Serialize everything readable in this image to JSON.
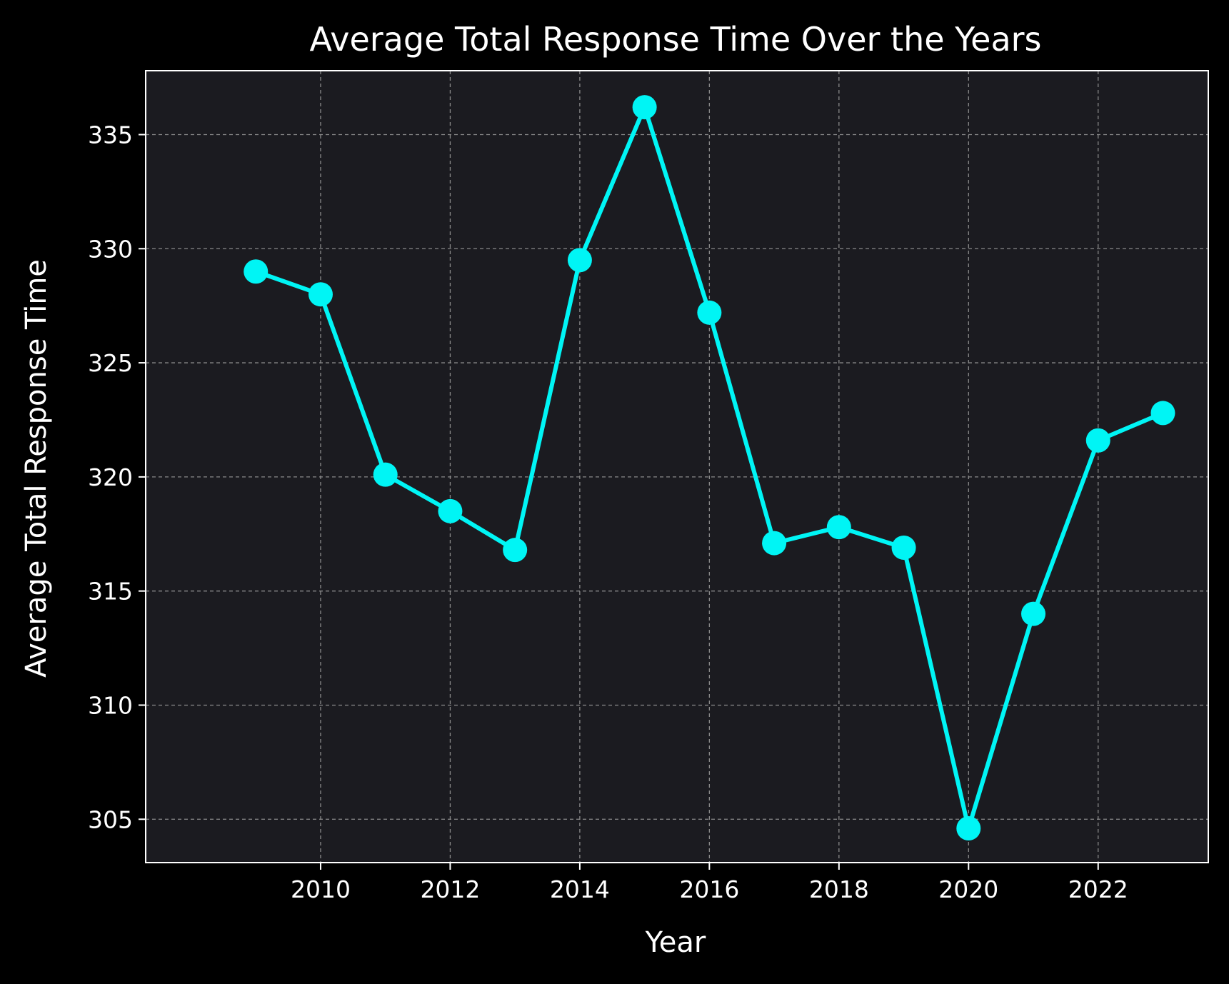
{
  "chart_data": {
    "type": "line",
    "title": "Average Total Response Time Over the Years",
    "xlabel": "Year",
    "ylabel": "Average Total Response Time",
    "x": [
      2009,
      2010,
      2011,
      2012,
      2013,
      2014,
      2015,
      2016,
      2017,
      2018,
      2019,
      2020,
      2021,
      2022,
      2023
    ],
    "series": [
      {
        "values": [
          329.0,
          328.0,
          320.1,
          318.5,
          316.8,
          329.5,
          336.2,
          327.2,
          317.1,
          317.8,
          316.9,
          304.6,
          314.0,
          321.6,
          322.8
        ]
      }
    ],
    "xlim": [
      2007.3,
      2023.7
    ],
    "ylim": [
      303.1,
      337.8
    ],
    "xticks": [
      2010,
      2012,
      2014,
      2016,
      2018,
      2020,
      2022
    ],
    "yticks": [
      305,
      310,
      315,
      320,
      325,
      330,
      335
    ],
    "grid": true,
    "colors": {
      "background": "#000000",
      "plot_area": "#1b1b20",
      "line": "#00f5f5",
      "grid": "#8a8a8a",
      "text": "#ffffff"
    }
  }
}
